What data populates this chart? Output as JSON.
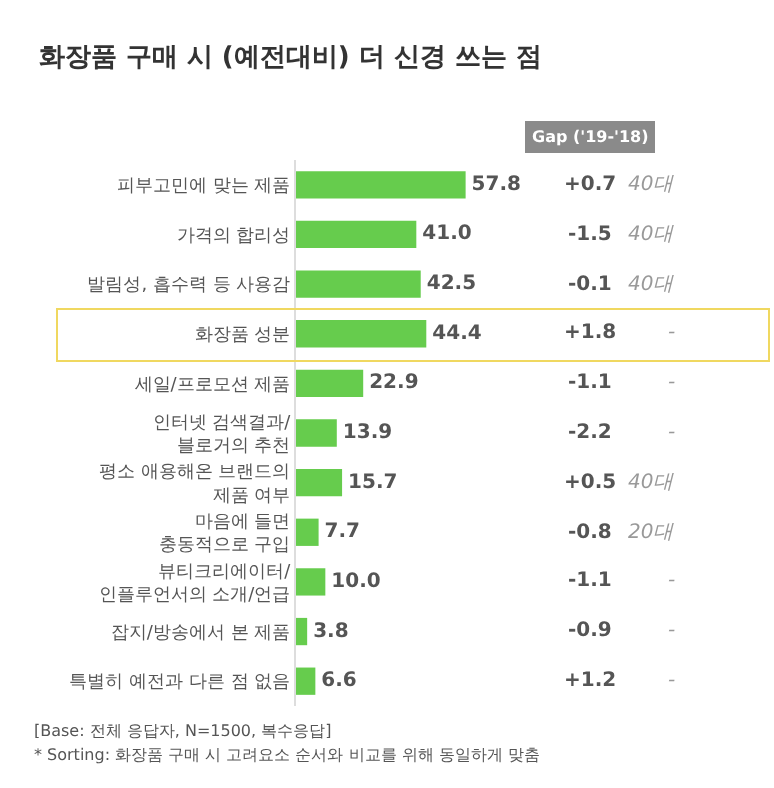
{
  "chart_data": {
    "type": "bar",
    "orientation": "horizontal",
    "title": "화장품 구매 시 (예전대비) 더 신경 쓰는 점",
    "categories": [
      "피부고민에 맞는 제품",
      "가격의 합리성",
      "발림성, 흡수력 등 사용감",
      "화장품 성분",
      "세일/프로모션 제품",
      "인터넷 검색결과/\n블로거의 추천",
      "평소 애용해온 브랜드의\n제품 여부",
      "마음에 들면\n충동적으로 구입",
      "뷰티크리에이터/\n인플루언서의 소개/언급",
      "잡지/방송에서 본 제품",
      "특별히 예전과 다른 점 없음"
    ],
    "values": [
      57.8,
      41.0,
      42.5,
      44.4,
      22.9,
      13.9,
      15.7,
      7.7,
      10.0,
      3.8,
      6.6
    ],
    "value_labels": [
      "57.8",
      "41.0",
      "42.5",
      "44.4",
      "22.9",
      "13.9",
      "15.7",
      "7.7",
      "10.0",
      "3.8",
      "6.6"
    ],
    "color": "#66cc4d",
    "annotations": [
      "Gap ('19-'18)",
      "[Base: 전체 응답자, N=1500, 복수응답]",
      "* Sorting: 화장품 구매 시 고려요소 순서와 비교를 위해 동일하게 맞춤",
      "+0.7",
      "40대",
      "-1.5",
      "40대",
      "-0.1",
      "40대",
      "+1.8",
      "-",
      "-1.1",
      "-",
      "-2.2",
      "-",
      "+0.5",
      "40대",
      "-0.8",
      "20대",
      "-1.1",
      "-",
      "-0.9",
      "-",
      "+1.2",
      "-"
    ]
  }
}
